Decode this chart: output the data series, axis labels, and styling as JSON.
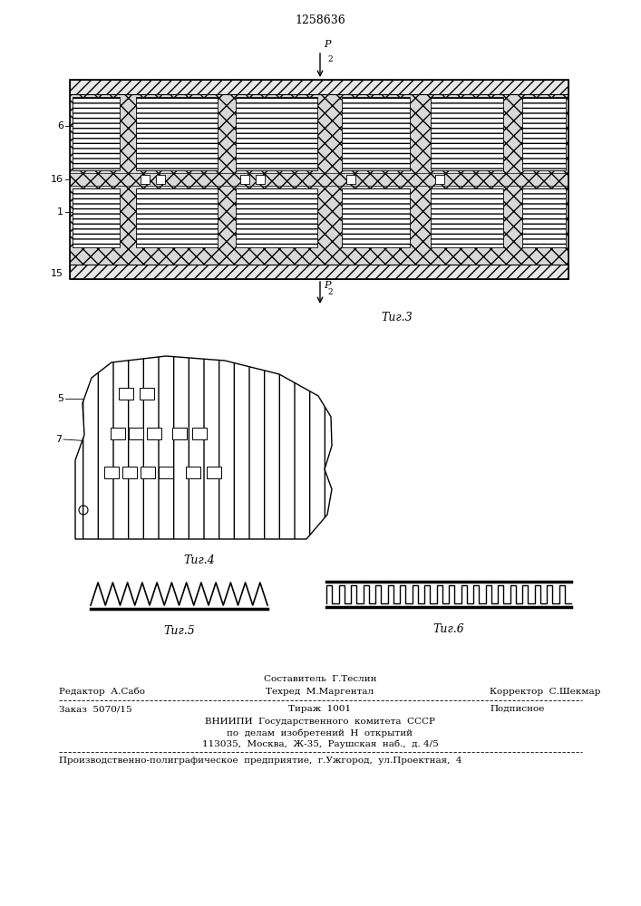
{
  "title": "1258636",
  "bg_color": "#ffffff",
  "line_color": "#000000",
  "fig3_label": "Τиг.3",
  "fig4_label": "Τиг.4",
  "fig5_label": "Τиг.5",
  "fig6_label": "Τиг.6",
  "label_6": "6",
  "label_16": "16",
  "label_1": "1",
  "label_15": "15",
  "label_5": "5",
  "label_7": "7",
  "editor_line": "Редактор  А.Сабо",
  "composer_line": "Составитель  Г.Теслин",
  "techred_line": "Техред  М.Маргентал",
  "corrector_line": "Корректор  С.Шекмар",
  "order_line": "Заказ  5070/15",
  "tirazh_line": "Тираж  1001",
  "podpisnoe_line": "Подписное",
  "vniippi_line": "ВНИИПИ  Государственного  комитета  СССР",
  "po_delam_line": "по  делам  изобретений  Н  открытий",
  "address_line": "113035,  Москва,  Ж-35,  Раушская  наб.,  д. 4/5",
  "factory_line": "Производственно-полиграфическое  предприятие,  г.Ужгород,  ул.Проектная,  4"
}
